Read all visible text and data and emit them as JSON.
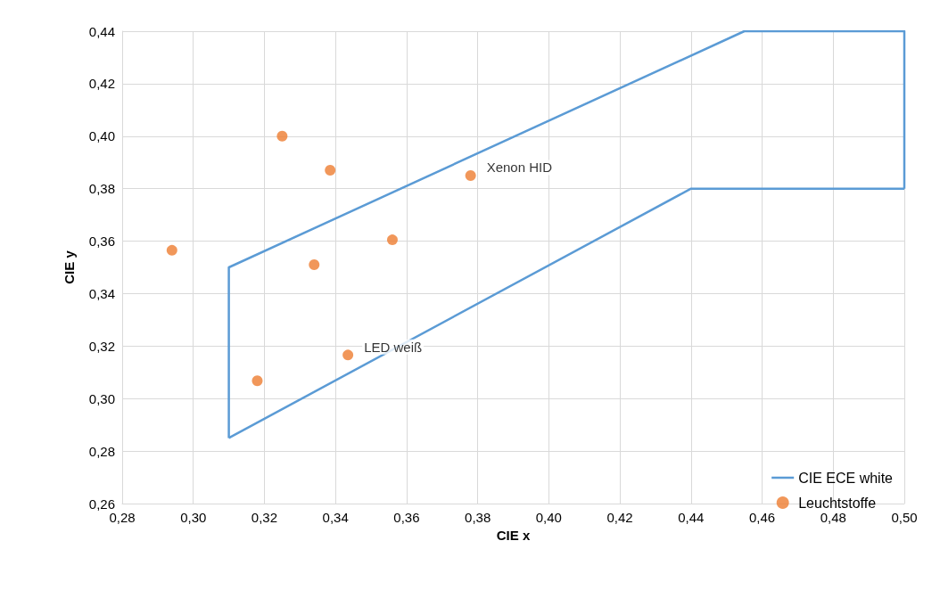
{
  "chart_data": {
    "type": "scatter",
    "xlabel": "CIE x",
    "ylabel": "CIE y",
    "xlim": [
      0.28,
      0.5
    ],
    "ylim": [
      0.26,
      0.44
    ],
    "xticks": [
      {
        "value": 0.28,
        "label": "0,28"
      },
      {
        "value": 0.3,
        "label": "0,30"
      },
      {
        "value": 0.32,
        "label": "0,32"
      },
      {
        "value": 0.34,
        "label": "0,34"
      },
      {
        "value": 0.36,
        "label": "0,36"
      },
      {
        "value": 0.38,
        "label": "0,38"
      },
      {
        "value": 0.4,
        "label": "0,40"
      },
      {
        "value": 0.42,
        "label": "0,42"
      },
      {
        "value": 0.44,
        "label": "0,44"
      },
      {
        "value": 0.46,
        "label": "0,46"
      },
      {
        "value": 0.48,
        "label": "0,48"
      },
      {
        "value": 0.5,
        "label": "0,50"
      }
    ],
    "yticks": [
      {
        "value": 0.26,
        "label": "0,26"
      },
      {
        "value": 0.28,
        "label": "0,28"
      },
      {
        "value": 0.3,
        "label": "0,30"
      },
      {
        "value": 0.32,
        "label": "0,32"
      },
      {
        "value": 0.34,
        "label": "0,34"
      },
      {
        "value": 0.36,
        "label": "0,36"
      },
      {
        "value": 0.38,
        "label": "0,38"
      },
      {
        "value": 0.4,
        "label": "0,40"
      },
      {
        "value": 0.42,
        "label": "0,42"
      },
      {
        "value": 0.44,
        "label": "0,44"
      }
    ],
    "series": [
      {
        "name": "CIE ECE white",
        "type": "line",
        "color": "#5b9bd5",
        "marker": "none",
        "x": [
          0.31,
          0.31,
          0.455,
          0.5,
          0.5
        ],
        "values": [
          0.285,
          0.35,
          0.44,
          0.44,
          0.38
        ]
      },
      {
        "type": "line",
        "color": "#5b9bd5",
        "marker": "none",
        "x": [
          0.31,
          0.44,
          0.5
        ],
        "values": [
          0.285,
          0.38,
          0.38
        ]
      },
      {
        "name": "Leuchtstoffe",
        "color": "#ed7d31",
        "marker": "circle",
        "x": [
          0.325,
          0.3385,
          0.378,
          0.356,
          0.294,
          0.334,
          0.3435,
          0.318
        ],
        "values": [
          0.4,
          0.387,
          0.385,
          0.3605,
          0.3565,
          0.351,
          0.3166,
          0.3068
        ]
      }
    ],
    "annotations": [
      {
        "text": "Xenon HID",
        "x": 0.378,
        "y": 0.385
      },
      {
        "text": "LED weiß",
        "x": 0.3435,
        "y": 0.3166
      }
    ],
    "grid": true,
    "legend": "bottom right"
  }
}
